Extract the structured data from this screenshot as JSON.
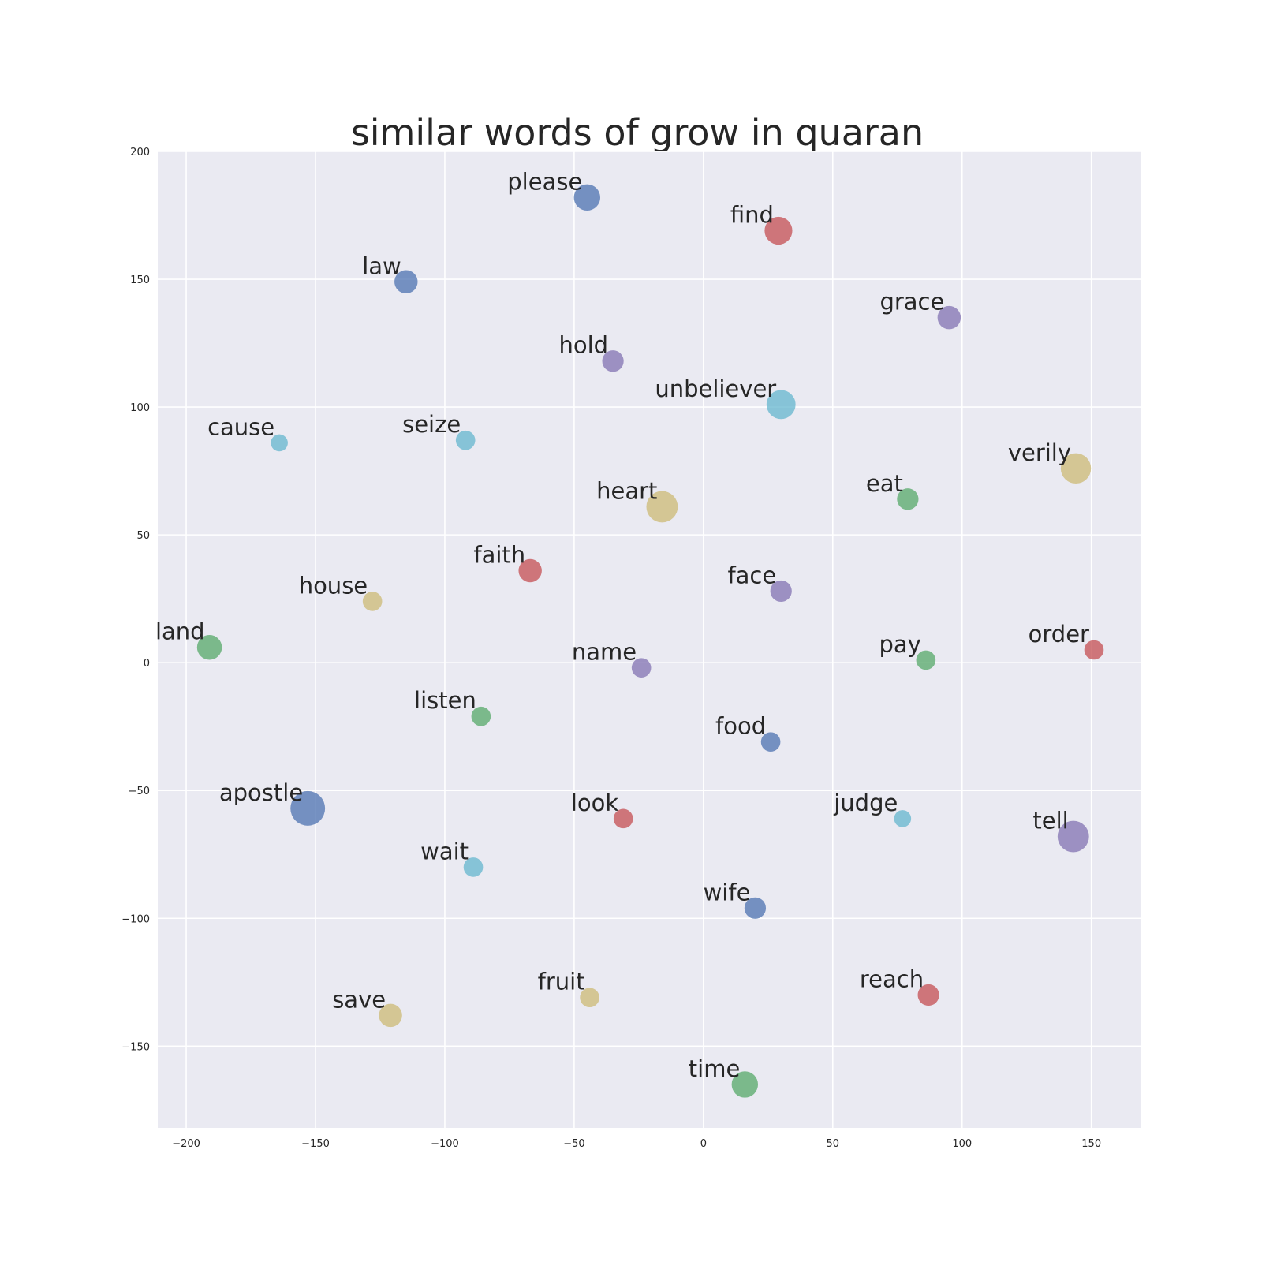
{
  "chart_data": {
    "type": "scatter",
    "title": "similar words of grow in quaran",
    "xlabel": "",
    "ylabel": "",
    "xlim": [
      -211,
      169
    ],
    "ylim": [
      -182,
      200
    ],
    "xticks": [
      -200,
      -150,
      -100,
      -50,
      0,
      50,
      100,
      150
    ],
    "yticks": [
      -150,
      -100,
      -50,
      0,
      50,
      100,
      150,
      200
    ],
    "xtick_labels": [
      "−200",
      "−150",
      "−100",
      "−50",
      "0",
      "50",
      "100",
      "150"
    ],
    "ytick_labels": [
      "−150",
      "−100",
      "−50",
      "0",
      "50",
      "100",
      "150",
      "200"
    ],
    "grid": true,
    "background_color": "#eaeaf2",
    "palette": {
      "blue": "#4c72b0",
      "green": "#55a868",
      "red": "#c44e52",
      "purple": "#8172b2",
      "yellow": "#ccb974",
      "cyan": "#64b5cd"
    },
    "points": [
      {
        "label": "please",
        "x": -45,
        "y": 182,
        "size": 7,
        "color": "blue"
      },
      {
        "label": "find",
        "x": 29,
        "y": 169,
        "size": 8,
        "color": "red"
      },
      {
        "label": "law",
        "x": -115,
        "y": 149,
        "size": 5,
        "color": "blue"
      },
      {
        "label": "grace",
        "x": 95,
        "y": 135,
        "size": 5,
        "color": "purple"
      },
      {
        "label": "hold",
        "x": -35,
        "y": 118,
        "size": 4,
        "color": "purple"
      },
      {
        "label": "unbeliever",
        "x": 30,
        "y": 101,
        "size": 9,
        "color": "cyan"
      },
      {
        "label": "cause",
        "x": -164,
        "y": 86,
        "size": 2,
        "color": "cyan"
      },
      {
        "label": "seize",
        "x": -92,
        "y": 87,
        "size": 3,
        "color": "cyan"
      },
      {
        "label": "verily",
        "x": 144,
        "y": 76,
        "size": 10,
        "color": "yellow"
      },
      {
        "label": "eat",
        "x": 79,
        "y": 64,
        "size": 4,
        "color": "green"
      },
      {
        "label": "heart",
        "x": -16,
        "y": 61,
        "size": 11,
        "color": "yellow"
      },
      {
        "label": "faith",
        "x": -67,
        "y": 36,
        "size": 5,
        "color": "red"
      },
      {
        "label": "face",
        "x": 30,
        "y": 28,
        "size": 4,
        "color": "purple"
      },
      {
        "label": "house",
        "x": -128,
        "y": 24,
        "size": 3,
        "color": "yellow"
      },
      {
        "label": "land",
        "x": -191,
        "y": 6,
        "size": 6,
        "color": "green"
      },
      {
        "label": "order",
        "x": 151,
        "y": 5,
        "size": 3,
        "color": "red"
      },
      {
        "label": "pay",
        "x": 86,
        "y": 1,
        "size": 3,
        "color": "green"
      },
      {
        "label": "name",
        "x": -24,
        "y": -2,
        "size": 3,
        "color": "purple"
      },
      {
        "label": "listen",
        "x": -86,
        "y": -21,
        "size": 3,
        "color": "green"
      },
      {
        "label": "food",
        "x": 26,
        "y": -31,
        "size": 3,
        "color": "blue"
      },
      {
        "label": "apostle",
        "x": -153,
        "y": -57,
        "size": 14,
        "color": "blue"
      },
      {
        "label": "look",
        "x": -31,
        "y": -61,
        "size": 3,
        "color": "red"
      },
      {
        "label": "judge",
        "x": 77,
        "y": -61,
        "size": 2,
        "color": "cyan"
      },
      {
        "label": "tell",
        "x": 143,
        "y": -68,
        "size": 11,
        "color": "purple"
      },
      {
        "label": "wait",
        "x": -89,
        "y": -80,
        "size": 3,
        "color": "cyan"
      },
      {
        "label": "wife",
        "x": 20,
        "y": -96,
        "size": 4,
        "color": "blue"
      },
      {
        "label": "fruit",
        "x": -44,
        "y": -131,
        "size": 3,
        "color": "yellow"
      },
      {
        "label": "reach",
        "x": 87,
        "y": -130,
        "size": 4,
        "color": "red"
      },
      {
        "label": "save",
        "x": -121,
        "y": -138,
        "size": 5,
        "color": "yellow"
      },
      {
        "label": "time",
        "x": 16,
        "y": -165,
        "size": 7,
        "color": "green"
      }
    ]
  }
}
